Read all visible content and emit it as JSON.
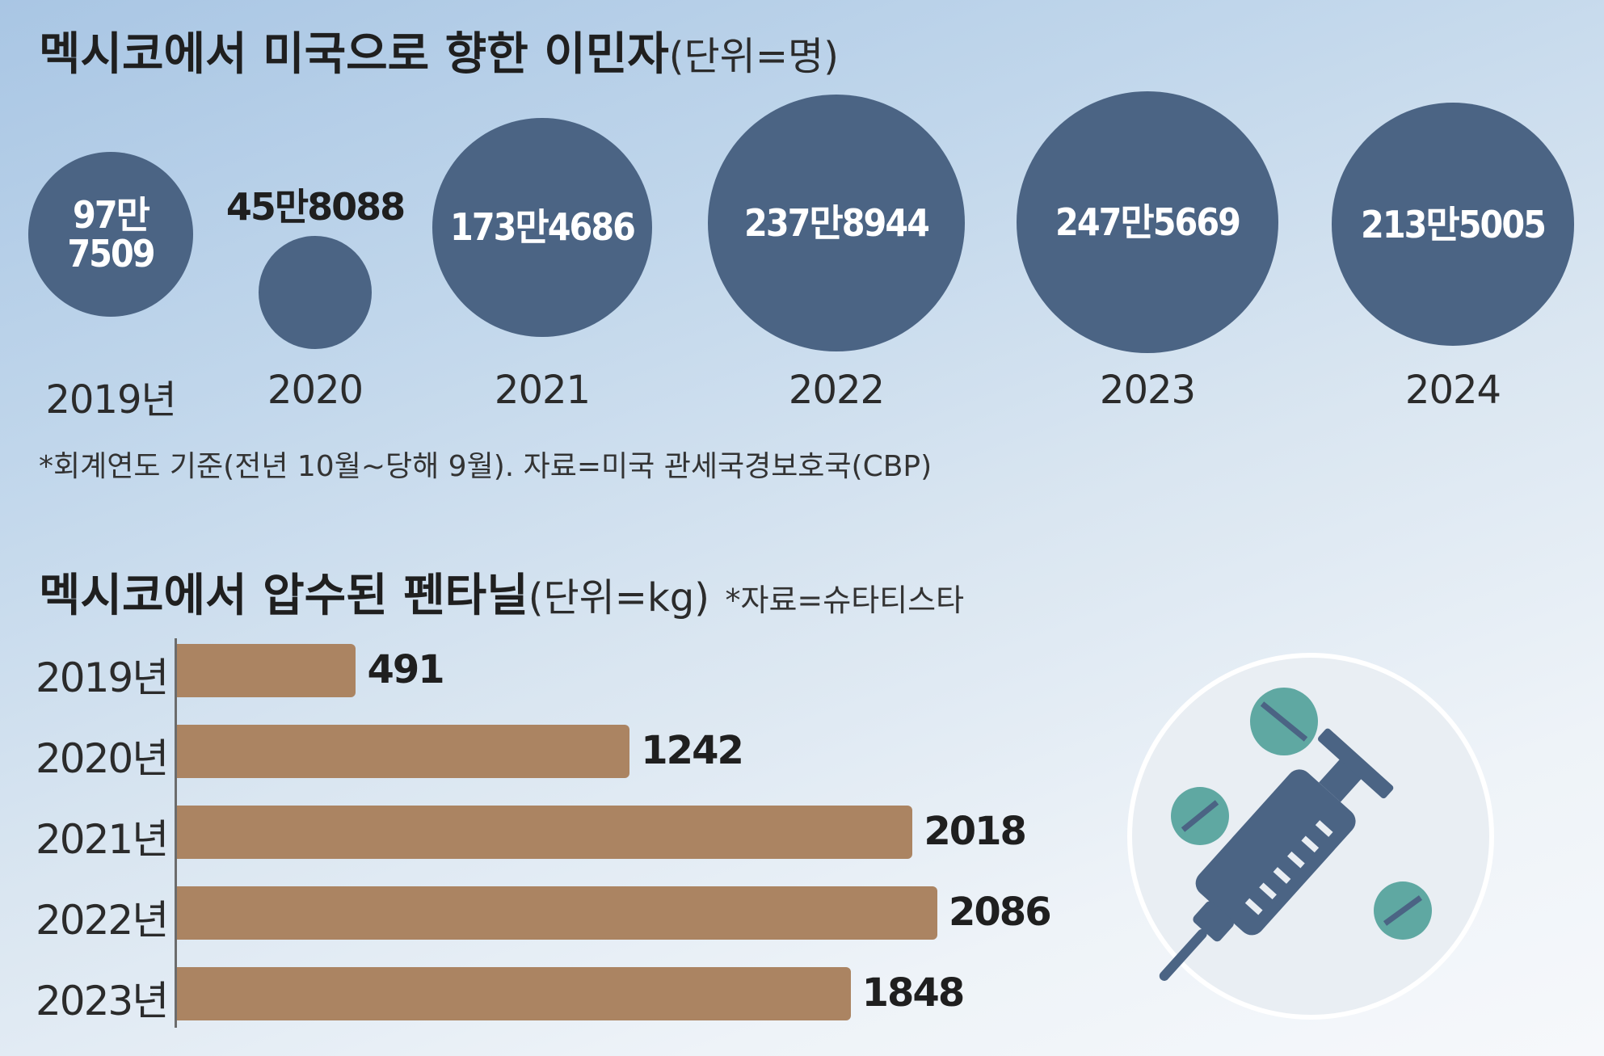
{
  "chart_data": [
    {
      "type": "bubble",
      "title": "멕시코에서 미국으로 향한 이민자",
      "unit": "(단위=명)",
      "categories": [
        "2019년",
        "2020",
        "2021",
        "2022",
        "2023",
        "2024"
      ],
      "values": [
        977509,
        458088,
        1734686,
        2378944,
        2475669,
        2135005
      ],
      "value_labels": [
        "97만7509",
        "45만8088",
        "173만4686",
        "237만8944",
        "247만5669",
        "213만5005"
      ],
      "value_label_lines_first": [
        [
          "97만",
          "7509"
        ]
      ],
      "note": "*회계연도 기준(전년 10월~당해 9월). 자료=미국 관세국경보호국(CBP)",
      "colors": {
        "circle": "#4b6484"
      }
    },
    {
      "type": "bar",
      "orientation": "horizontal",
      "title": "멕시코에서 압수된 펜타닐",
      "unit": "(단위=kg)",
      "source": "*자료=슈타티스타",
      "categories": [
        "2019년",
        "2020년",
        "2021년",
        "2022년",
        "2023년"
      ],
      "values": [
        491,
        1242,
        2018,
        2086,
        1848
      ],
      "colors": {
        "bar": "#ab8462"
      }
    }
  ],
  "illustration": {
    "icon": "syringe-and-pills-icon"
  }
}
